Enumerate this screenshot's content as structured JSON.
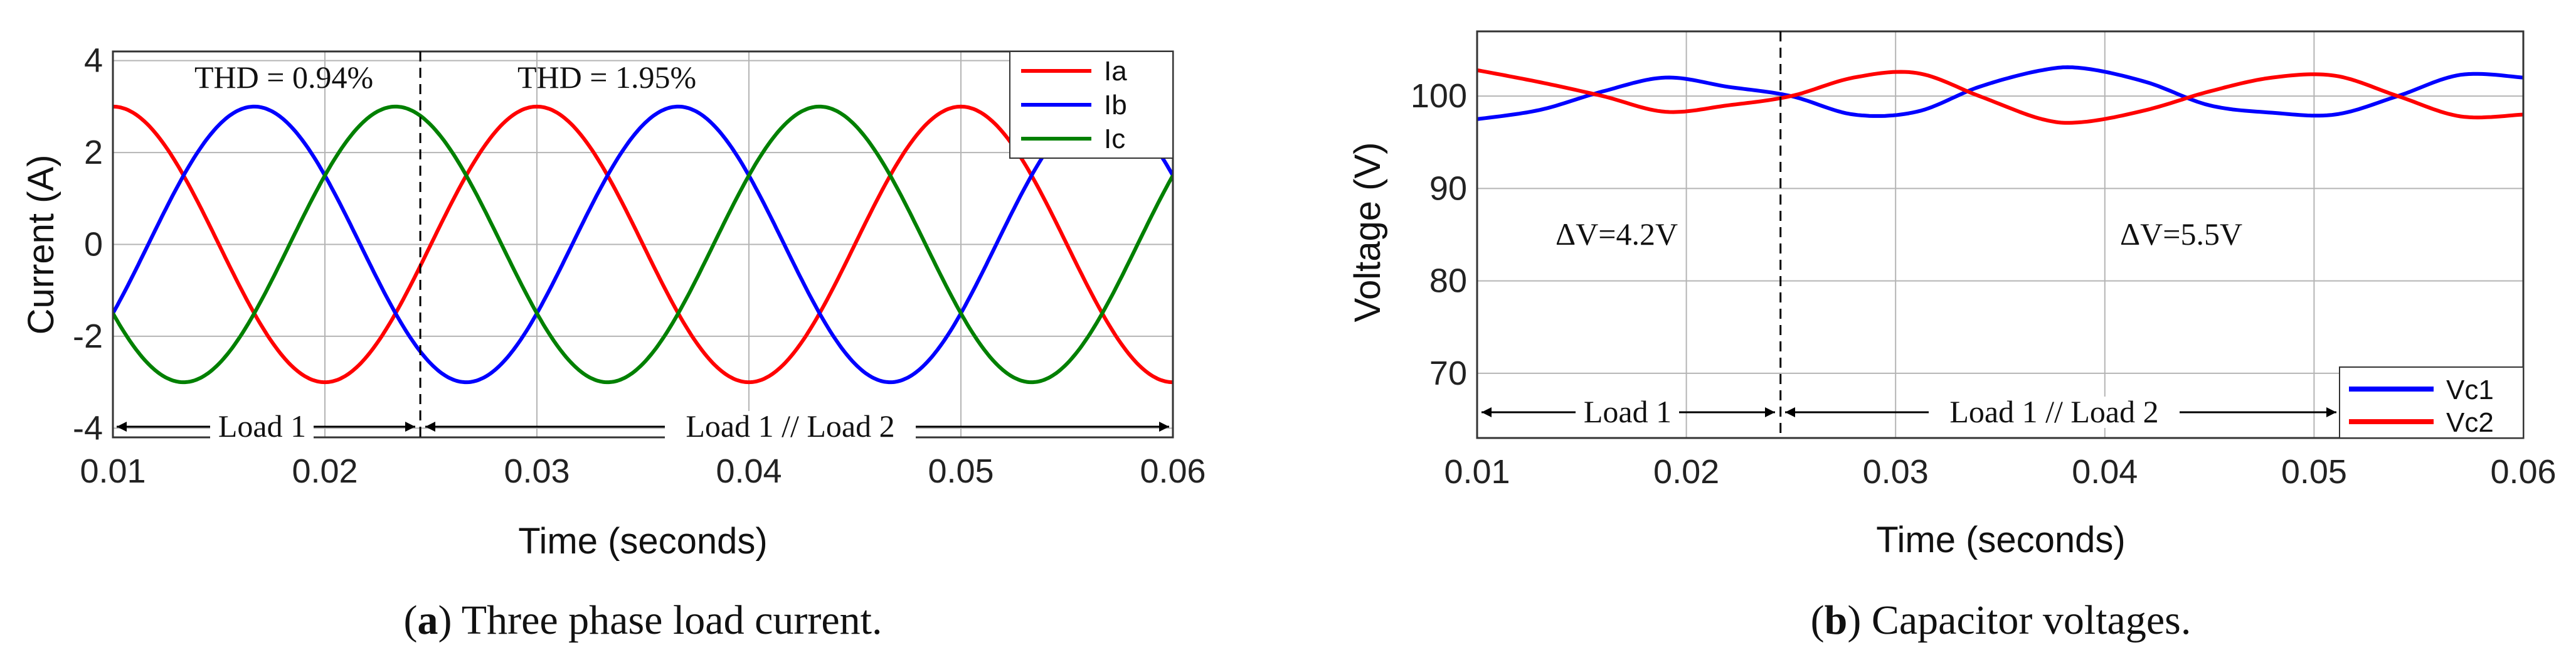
{
  "chart_data": [
    {
      "type": "line",
      "title": "",
      "xlabel": "Time (seconds)",
      "ylabel": "Current (A)",
      "xlim": [
        0.01,
        0.06
      ],
      "ylim": [
        -4.2,
        4.2
      ],
      "xticks": [
        "0.01",
        "0.02",
        "0.03",
        "0.04",
        "0.05",
        "0.06"
      ],
      "yticks": [
        "4",
        "2",
        "0",
        "-2",
        "-4"
      ],
      "grid": true,
      "legend_position": "top-right",
      "series": [
        {
          "name": "Ia",
          "color": "#ff0000",
          "model": "sine",
          "amplitude": 3.0,
          "frequency_hz": 50,
          "phase_deg": -90
        },
        {
          "name": "Ib",
          "color": "#0000ff",
          "model": "sine",
          "amplitude": 3.0,
          "frequency_hz": 50,
          "phase_deg": 150
        },
        {
          "name": "Ic",
          "color": "#008000",
          "model": "sine",
          "amplitude": 3.0,
          "frequency_hz": 50,
          "phase_deg": 30
        }
      ],
      "load_change_time": 0.0245,
      "annotations": {
        "thd_before": "THD = 0.94%",
        "thd_after": "THD = 1.95%",
        "load_before": "Load 1",
        "load_after": "Load 1 // Load 2"
      },
      "caption_label": "a",
      "caption_text": " Three phase load current."
    },
    {
      "type": "line",
      "title": "",
      "xlabel": "Time (seconds)",
      "ylabel": "Voltage (V)",
      "xlim": [
        0.01,
        0.06
      ],
      "ylim": [
        63,
        107
      ],
      "xticks": [
        "0.01",
        "0.02",
        "0.03",
        "0.04",
        "0.05",
        "0.06"
      ],
      "yticks": [
        "100",
        "90",
        "80",
        "70"
      ],
      "grid": true,
      "legend_position": "bottom-right",
      "series": [
        {
          "name": "Vc1",
          "color": "#0000ff",
          "x": [
            0.01,
            0.013,
            0.016,
            0.019,
            0.022,
            0.025,
            0.028,
            0.031,
            0.034,
            0.037,
            0.039,
            0.042,
            0.045,
            0.048,
            0.051,
            0.054,
            0.057,
            0.06
          ],
          "y": [
            97.5,
            98.5,
            100.5,
            102.0,
            101.0,
            100.0,
            98.0,
            98.3,
            101.0,
            102.8,
            103.0,
            101.5,
            99.0,
            98.2,
            98.0,
            100.0,
            102.3,
            102.0
          ]
        },
        {
          "name": "Vc2",
          "color": "#ff0000",
          "x": [
            0.01,
            0.013,
            0.016,
            0.019,
            0.022,
            0.025,
            0.028,
            0.031,
            0.034,
            0.037,
            0.039,
            0.042,
            0.045,
            0.048,
            0.051,
            0.054,
            0.057,
            0.06
          ],
          "y": [
            102.8,
            101.5,
            100.0,
            98.3,
            99.0,
            100.0,
            102.0,
            102.5,
            100.0,
            97.5,
            97.2,
            98.5,
            100.5,
            102.0,
            102.2,
            100.0,
            97.8,
            98.0
          ]
        }
      ],
      "load_change_time": 0.0245,
      "annotations": {
        "dv_before": "ΔV=4.2V",
        "dv_after": "ΔV=5.5V",
        "load_before": "Load 1",
        "load_after": "Load 1 // Load 2"
      },
      "caption_label": "b",
      "caption_text": " Capacitor voltages."
    }
  ]
}
